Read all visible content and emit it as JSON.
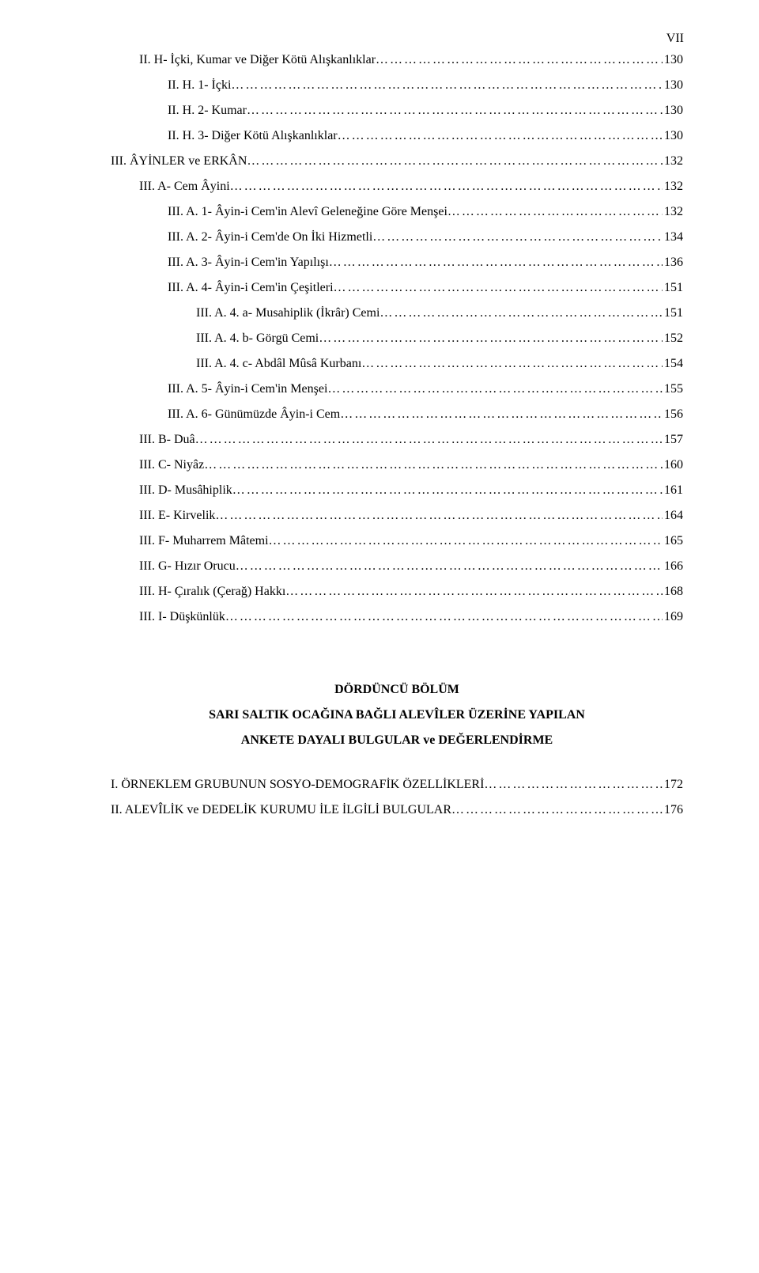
{
  "roman_header": "VII",
  "dot_fill": "…………………………………………………………………………………………………………………………………………",
  "toc": [
    {
      "indent": 1,
      "label": "II. H- İçki, Kumar ve Diğer Kötü Alışkanlıklar",
      "page": "130"
    },
    {
      "indent": 2,
      "label": "II. H. 1- İçki",
      "page": "130"
    },
    {
      "indent": 2,
      "label": "II. H. 2- Kumar",
      "page": "130"
    },
    {
      "indent": 2,
      "label": "II. H. 3- Diğer Kötü Alışkanlıklar",
      "page": "130"
    },
    {
      "indent": 0,
      "label": "III. ÂYİNLER ve ERKÂN",
      "page": "132"
    },
    {
      "indent": 1,
      "label": "III. A- Cem Âyini",
      "page": "132"
    },
    {
      "indent": 2,
      "label": "III. A. 1- Âyin-i Cem'in Alevî Geleneğine Göre Menşei",
      "page": "132"
    },
    {
      "indent": 2,
      "label": "III. A. 2- Âyin-i Cem'de On İki Hizmetli",
      "page": "134"
    },
    {
      "indent": 2,
      "label": "III. A. 3- Âyin-i Cem'in Yapılışı",
      "page": "136"
    },
    {
      "indent": 2,
      "label": "III. A. 4- Âyin-i Cem'in Çeşitleri",
      "page": "151"
    },
    {
      "indent": 3,
      "label": "III. A. 4. a- Musahiplik (İkrâr) Cemi",
      "page": "151"
    },
    {
      "indent": 3,
      "label": "III. A. 4. b- Görgü Cemi",
      "page": "152"
    },
    {
      "indent": 3,
      "label": "III. A. 4. c- Abdâl Mûsâ Kurbanı",
      "page": "154"
    },
    {
      "indent": 2,
      "label": "III. A. 5- Âyin-i Cem'in Menşei",
      "page": "155"
    },
    {
      "indent": 2,
      "label": "III. A. 6- Günümüzde Âyin-i Cem",
      "page": "156"
    },
    {
      "indent": 1,
      "label": "III. B- Duâ",
      "page": "157"
    },
    {
      "indent": 1,
      "label": "III. C- Niyâz",
      "page": "160"
    },
    {
      "indent": 1,
      "label": "III. D- Musâhiplik",
      "page": "161"
    },
    {
      "indent": 1,
      "label": "III. E- Kirvelik",
      "page": "164"
    },
    {
      "indent": 1,
      "label": "III. F- Muharrem Mâtemi",
      "page": "165"
    },
    {
      "indent": 1,
      "label": "III. G- Hızır Orucu",
      "page": "166"
    },
    {
      "indent": 1,
      "label": "III. H- Çıralık (Çerağ) Hakkı",
      "page": "168"
    },
    {
      "indent": 1,
      "label": "III. I- Düşkünlük",
      "page": "169"
    }
  ],
  "section": {
    "heading_lines": [
      "DÖRDÜNCÜ BÖLÜM",
      "SARI SALTIK OCAĞINA BAĞLI ALEVÎLER ÜZERİNE YAPILAN",
      "ANKETE DAYALI BULGULAR ve DEĞERLENDİRME"
    ]
  },
  "after_toc": [
    {
      "indent": 0,
      "label": "I. ÖRNEKLEM GRUBUNUN SOSYO-DEMOGRAFİK ÖZELLİKLERİ",
      "page": "172"
    },
    {
      "indent": 0,
      "label": "II. ALEVÎLİK ve DEDELİK KURUMU İLE İLGİLİ BULGULAR",
      "page": "176"
    }
  ],
  "colors": {
    "text": "#000000",
    "background": "#ffffff"
  },
  "typography": {
    "body_fontsize_pt": 12,
    "font_family": "Times New Roman",
    "line_height": 2.0
  }
}
